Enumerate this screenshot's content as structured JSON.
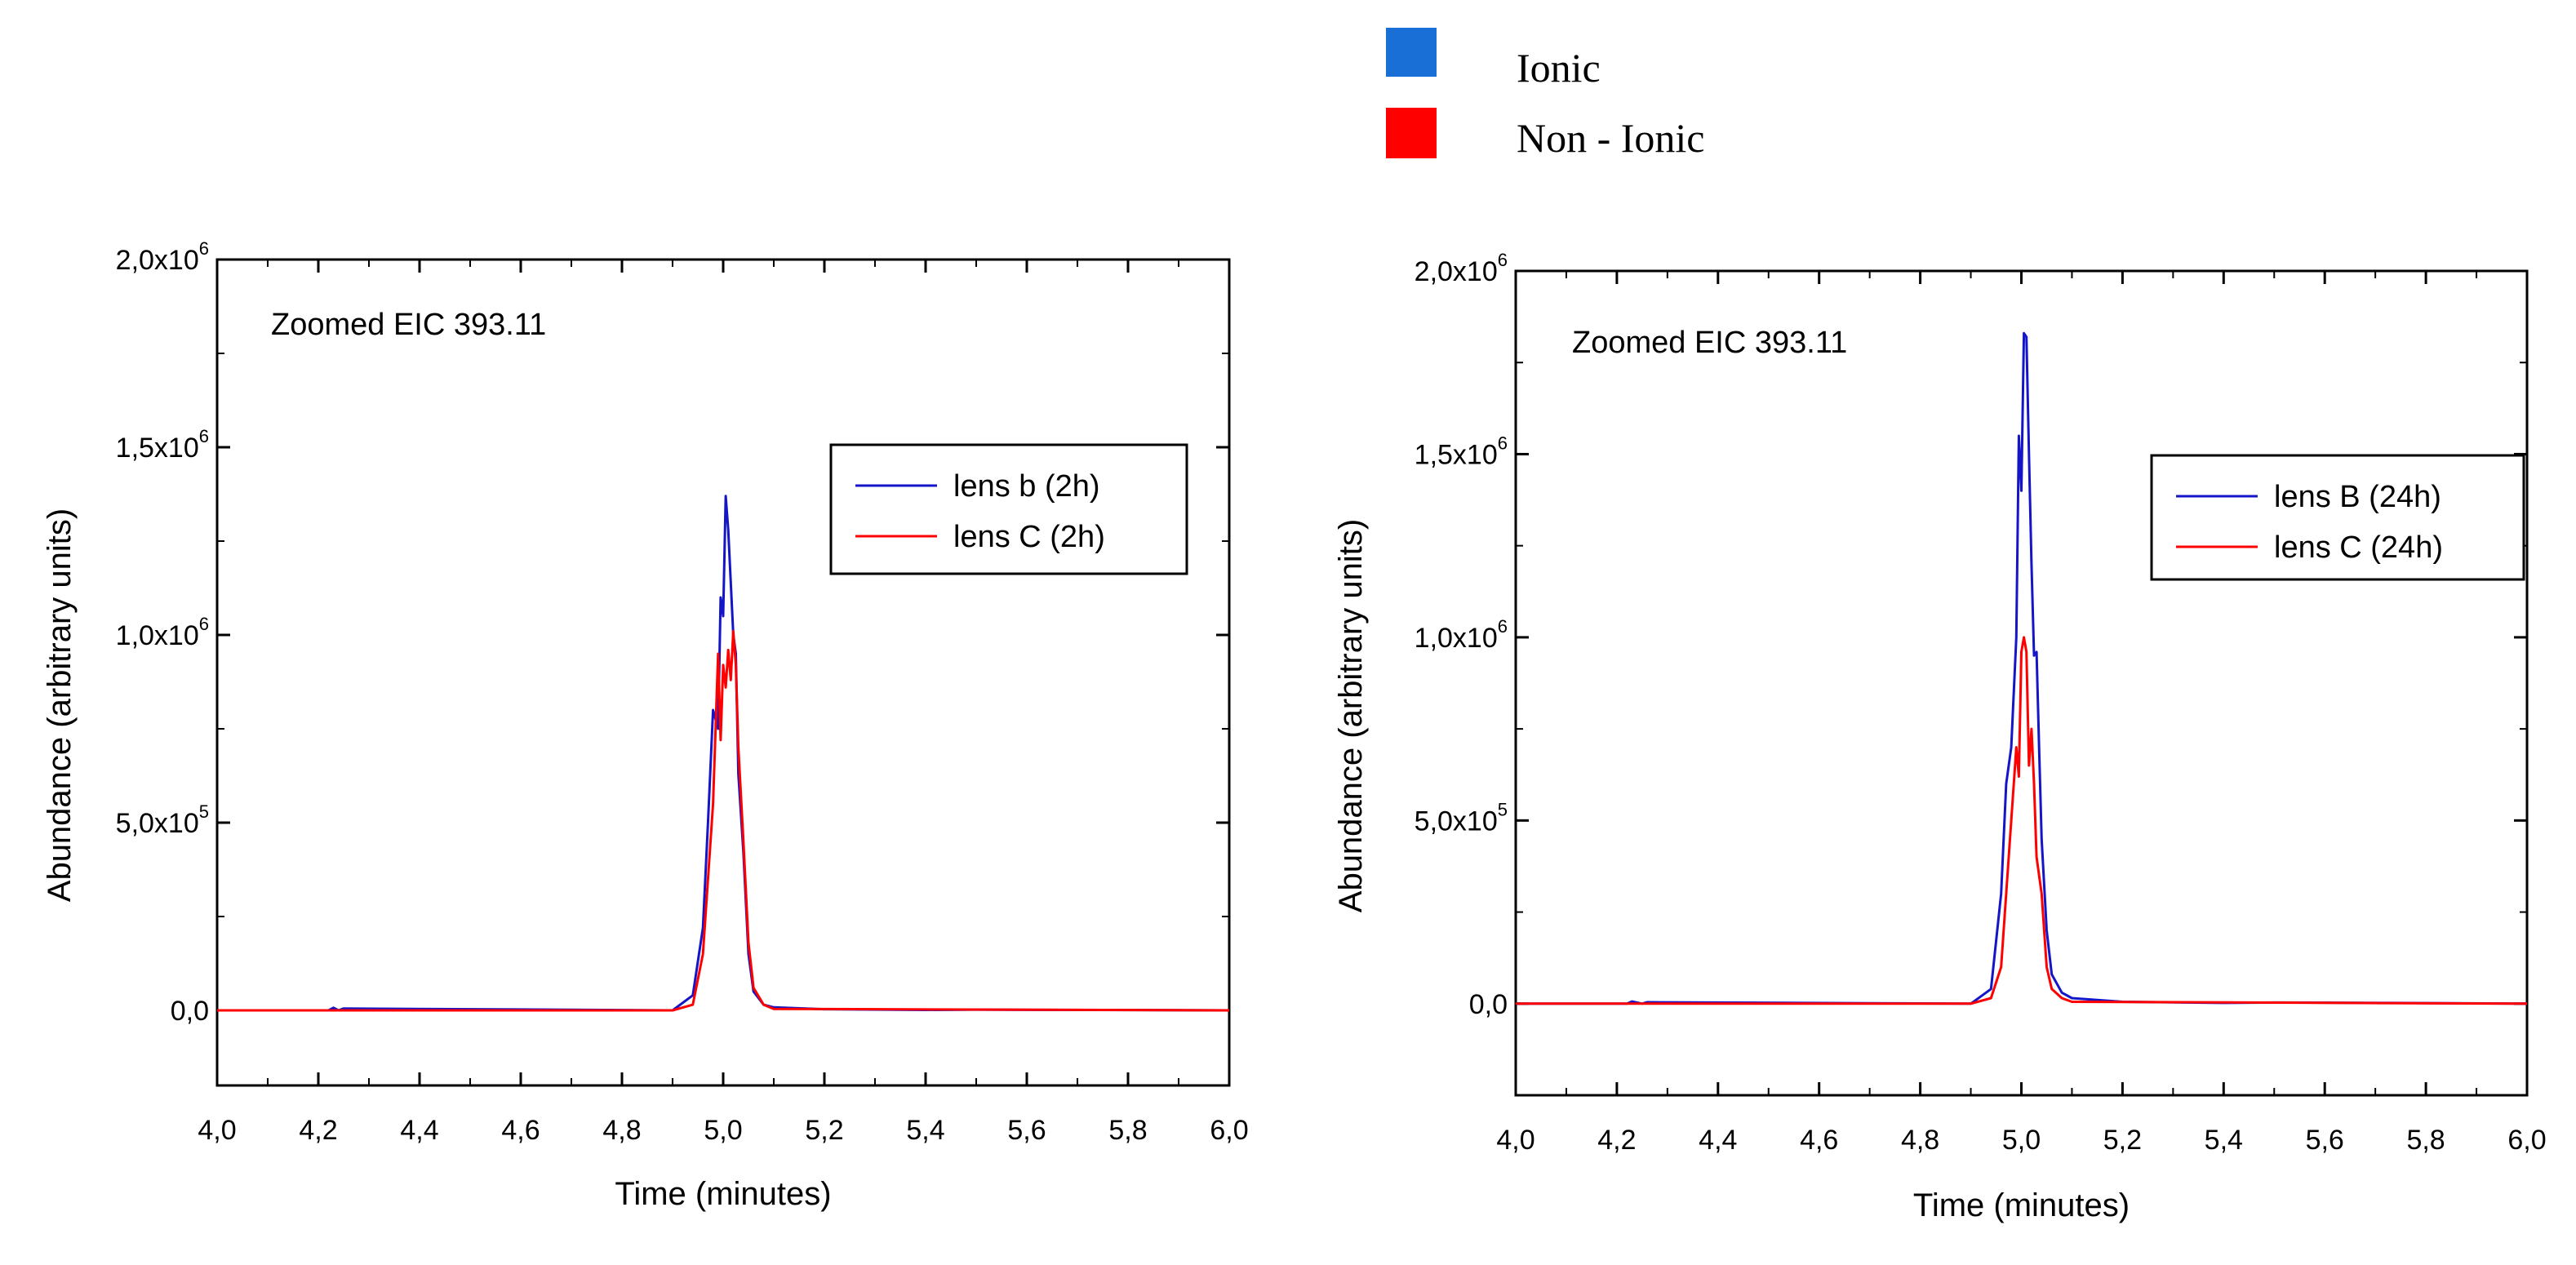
{
  "legend": {
    "items": [
      {
        "label": "Ionic",
        "color": "#1a6fd6"
      },
      {
        "label": "Non - Ionic",
        "color": "#ff0000"
      }
    ]
  },
  "chart_data": [
    {
      "type": "line",
      "annotation": "Zoomed EIC 393.11",
      "xlabel": "Time (minutes)",
      "ylabel": "Abundance (arbitrary units)",
      "xlim": [
        4.0,
        6.0
      ],
      "ylim": [
        -200000,
        2000000
      ],
      "xticks": [
        4.0,
        4.2,
        4.4,
        4.6,
        4.8,
        5.0,
        5.2,
        5.4,
        5.6,
        5.8,
        6.0
      ],
      "xtick_labels": [
        "4,0",
        "4,2",
        "4,4",
        "4,6",
        "4,8",
        "5,0",
        "5,2",
        "5,4",
        "5,6",
        "5,8",
        "6,0"
      ],
      "yticks": [
        0,
        500000,
        1000000,
        1500000,
        2000000
      ],
      "ytick_labels": [
        {
          "mant": "0,0",
          "exp": ""
        },
        {
          "mant": "5,0x10",
          "exp": "5"
        },
        {
          "mant": "1,0x10",
          "exp": "6"
        },
        {
          "mant": "1,5x10",
          "exp": "6"
        },
        {
          "mant": "2,0x10",
          "exp": "6"
        }
      ],
      "legend_position": "upper-right",
      "series": [
        {
          "name": "lens b (2h)",
          "color": "#1515c8",
          "x": [
            4.0,
            4.22,
            4.23,
            4.24,
            4.25,
            4.9,
            4.94,
            4.96,
            4.97,
            4.98,
            4.99,
            4.995,
            5.0,
            5.005,
            5.01,
            5.02,
            5.025,
            5.03,
            5.04,
            5.05,
            5.06,
            5.08,
            5.1,
            5.2,
            5.4,
            5.5,
            6.0
          ],
          "y": [
            0,
            0,
            7000,
            0,
            5000,
            0,
            40000,
            220000,
            500000,
            800000,
            750000,
            1100000,
            1050000,
            1370000,
            1280000,
            1000000,
            950000,
            630000,
            420000,
            150000,
            50000,
            15000,
            8000,
            3000,
            1000,
            2000,
            0
          ]
        },
        {
          "name": "lens C (2h)",
          "color": "#ff0000",
          "x": [
            4.0,
            4.9,
            4.94,
            4.96,
            4.98,
            4.99,
            4.995,
            5.0,
            5.005,
            5.01,
            5.015,
            5.02,
            5.025,
            5.03,
            5.04,
            5.05,
            5.06,
            5.08,
            5.1,
            6.0
          ],
          "y": [
            0,
            0,
            15000,
            150000,
            550000,
            950000,
            720000,
            920000,
            860000,
            960000,
            880000,
            1010000,
            920000,
            700000,
            450000,
            180000,
            60000,
            15000,
            4000,
            0
          ]
        }
      ]
    },
    {
      "type": "line",
      "annotation": "Zoomed EIC 393.11",
      "xlabel": "Time (minutes)",
      "ylabel": "Abundance (arbitrary units)",
      "xlim": [
        4.0,
        6.0
      ],
      "ylim": [
        -250000,
        2000000
      ],
      "xticks": [
        4.0,
        4.2,
        4.4,
        4.6,
        4.8,
        5.0,
        5.2,
        5.4,
        5.6,
        5.8,
        6.0
      ],
      "xtick_labels": [
        "4,0",
        "4,2",
        "4,4",
        "4,6",
        "4,8",
        "5,0",
        "5,2",
        "5,4",
        "5,6",
        "5,8",
        "6,0"
      ],
      "yticks": [
        0,
        500000,
        1000000,
        1500000,
        2000000
      ],
      "ytick_labels": [
        {
          "mant": "0,0",
          "exp": ""
        },
        {
          "mant": "5,0x10",
          "exp": "5"
        },
        {
          "mant": "1,0x10",
          "exp": "6"
        },
        {
          "mant": "1,5x10",
          "exp": "6"
        },
        {
          "mant": "2,0x10",
          "exp": "6"
        }
      ],
      "legend_position": "upper-right",
      "series": [
        {
          "name": "lens B (24h)",
          "color": "#1515c8",
          "x": [
            4.0,
            4.22,
            4.23,
            4.25,
            4.26,
            4.9,
            4.94,
            4.96,
            4.97,
            4.98,
            4.99,
            4.995,
            5.0,
            5.005,
            5.01,
            5.015,
            5.02,
            5.025,
            5.03,
            5.035,
            5.04,
            5.05,
            5.06,
            5.08,
            5.1,
            5.2,
            5.4,
            5.5,
            5.73,
            6.0
          ],
          "y": [
            0,
            0,
            6000,
            0,
            4000,
            0,
            40000,
            300000,
            600000,
            700000,
            1000000,
            1550000,
            1400000,
            1830000,
            1820000,
            1500000,
            1200000,
            950000,
            960000,
            700000,
            450000,
            200000,
            80000,
            30000,
            15000,
            5000,
            2000,
            3000,
            2000,
            0
          ]
        },
        {
          "name": "lens C (24h)",
          "color": "#ff0000",
          "x": [
            4.0,
            4.9,
            4.94,
            4.96,
            4.98,
            4.99,
            4.995,
            5.0,
            5.005,
            5.01,
            5.015,
            5.02,
            5.025,
            5.03,
            5.04,
            5.05,
            5.06,
            5.08,
            5.1,
            6.0
          ],
          "y": [
            0,
            0,
            15000,
            100000,
            500000,
            700000,
            620000,
            960000,
            1000000,
            960000,
            650000,
            750000,
            600000,
            400000,
            300000,
            100000,
            40000,
            15000,
            5000,
            0
          ]
        }
      ]
    }
  ]
}
